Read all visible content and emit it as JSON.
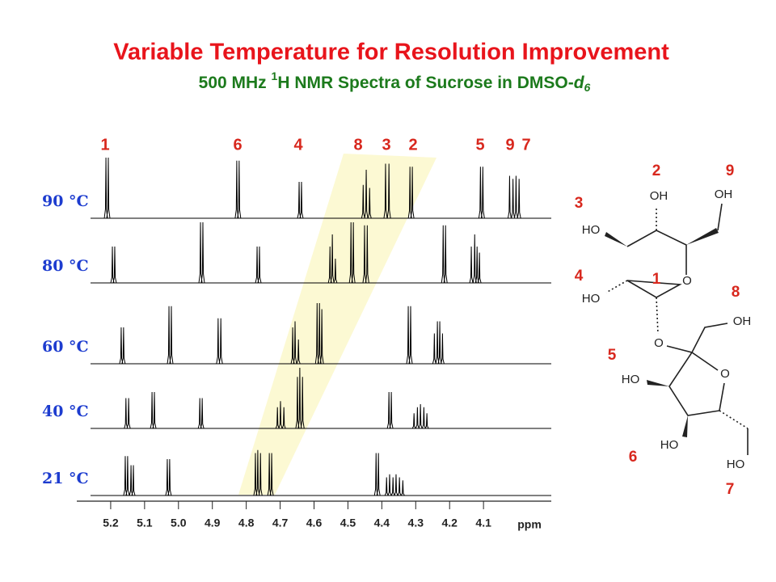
{
  "chart_data": {
    "type": "spectrum",
    "title": "Variable Temperature for Resolution Improvement",
    "subtitle": {
      "pre": "500 MHz ",
      "sup": "1",
      "mid": "H NMR Spectra of Sucrose in DMSO-",
      "italic": "d",
      "sub": "6"
    },
    "peak_labels": [
      "1",
      "6",
      "4",
      "8",
      "3",
      "2",
      "5",
      "9",
      "7"
    ],
    "xlabel": "ppm",
    "xlim": [
      5.3,
      3.9
    ],
    "xticks": [
      5.2,
      5.1,
      {
        "value": 5,
        "label": "5.0"
      },
      4.9,
      4.8,
      4.7,
      4.6,
      4.5,
      4.4,
      4.3,
      4.2,
      4.1
    ],
    "color": "#000000",
    "spectra": [
      {
        "name": "90 °C",
        "ppm": [
          5.214,
          5.207,
          4.828,
          4.821,
          4.644,
          4.637,
          4.455,
          4.446,
          4.436,
          4.389,
          4.379,
          4.317,
          4.31,
          4.109,
          4.102,
          4.023,
          4.013,
          4.004,
          3.995
        ],
        "intensity": [
          1,
          1,
          0.95,
          0.95,
          0.6,
          0.6,
          0.55,
          0.8,
          0.5,
          0.9,
          0.9,
          0.85,
          0.85,
          0.85,
          0.85,
          0.7,
          0.65,
          0.7,
          0.65
        ]
      },
      {
        "name": "80 °C",
        "ppm": [
          5.195,
          5.188,
          4.935,
          4.928,
          4.768,
          4.761,
          4.553,
          4.546,
          4.537,
          4.491,
          4.484,
          4.451,
          4.443,
          4.219,
          4.212,
          4.136,
          4.126,
          4.119,
          4.112
        ],
        "intensity": [
          0.6,
          0.6,
          1,
          1,
          0.6,
          0.6,
          0.6,
          0.8,
          0.4,
          1,
          1,
          0.95,
          0.95,
          0.95,
          0.95,
          0.6,
          0.8,
          0.6,
          0.5
        ]
      },
      {
        "name": "60 °C",
        "ppm": [
          5.169,
          5.162,
          5.028,
          5.021,
          4.883,
          4.875,
          4.663,
          4.656,
          4.646,
          4.591,
          4.584,
          4.577,
          4.322,
          4.315,
          4.245,
          4.236,
          4.229,
          4.221
        ],
        "intensity": [
          0.6,
          0.6,
          0.95,
          0.95,
          0.75,
          0.75,
          0.6,
          0.7,
          0.4,
          1,
          1,
          0.9,
          0.95,
          0.95,
          0.5,
          0.7,
          0.7,
          0.5
        ]
      },
      {
        "name": "40 °C",
        "ppm": [
          5.155,
          5.147,
          5.078,
          5.071,
          4.937,
          4.93,
          4.708,
          4.699,
          4.689,
          4.649,
          4.642,
          4.634,
          4.379,
          4.372,
          4.305,
          4.295,
          4.286,
          4.276,
          4.267
        ],
        "intensity": [
          0.5,
          0.5,
          0.6,
          0.6,
          0.5,
          0.5,
          0.35,
          0.45,
          0.35,
          0.85,
          1,
          0.85,
          0.6,
          0.6,
          0.25,
          0.35,
          0.4,
          0.35,
          0.25
        ]
      },
      {
        "name": "21 °C",
        "ppm": [
          5.157,
          5.15,
          5.14,
          5.133,
          5.033,
          5.026,
          4.773,
          4.766,
          4.758,
          4.732,
          4.725,
          4.417,
          4.41,
          4.386,
          4.377,
          4.367,
          4.358,
          4.348,
          4.338
        ],
        "intensity": [
          0.65,
          0.65,
          0.5,
          0.5,
          0.6,
          0.6,
          0.7,
          0.75,
          0.7,
          0.7,
          0.7,
          0.7,
          0.7,
          0.3,
          0.35,
          0.3,
          0.35,
          0.3,
          0.25
        ]
      }
    ]
  },
  "structure": {
    "numbers": [
      "2",
      "9",
      "3",
      "4",
      "1",
      "8",
      "5",
      "6",
      "7"
    ],
    "atoms": [
      "OH",
      "OH",
      "HO",
      "O",
      "HO",
      "O",
      "OH",
      "O",
      "HO",
      "HO",
      "HO"
    ]
  }
}
